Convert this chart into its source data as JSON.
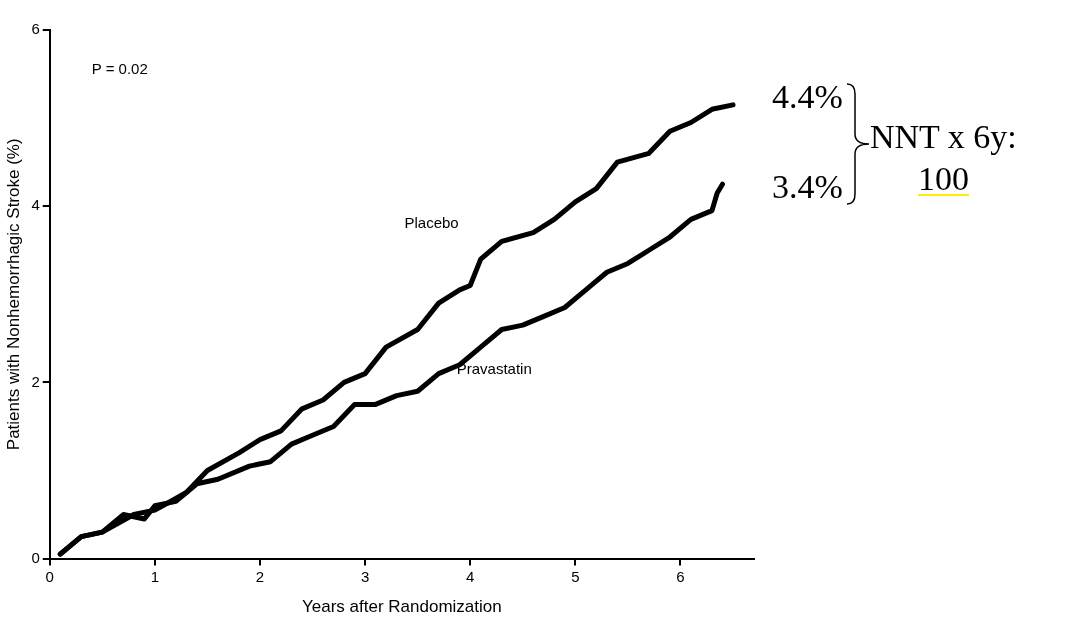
{
  "chart_data": {
    "type": "line",
    "xlabel": "Years after Randomization",
    "ylabel": "Patients with Nonhemorrhagic Stroke (%)",
    "xlim": [
      0,
      6.7
    ],
    "xticks": [
      0,
      1,
      2,
      3,
      4,
      5,
      6
    ],
    "ylim": [
      0,
      6
    ],
    "yticks": [
      0,
      2,
      4,
      6
    ],
    "grid": false,
    "legend": false,
    "marker": "none",
    "line_style": "solid",
    "annotations": [
      "P = 0.02",
      "4.4%",
      "3.4%",
      "NNT x 6y:",
      "100"
    ],
    "series": [
      {
        "name": "Placebo",
        "color": "#000000",
        "x": [
          0.1,
          0.3,
          0.5,
          0.8,
          1,
          1.3,
          1.5,
          1.8,
          2,
          2.2,
          2.4,
          2.6,
          2.8,
          3,
          3.2,
          3.5,
          3.7,
          3.9,
          4.0,
          4.1,
          4.3,
          4.6,
          4.8,
          5,
          5.2,
          5.4,
          5.7,
          5.9,
          6.1,
          6.3,
          6.5
        ],
        "values": [
          0.05,
          0.25,
          0.3,
          0.5,
          0.55,
          0.75,
          1.0,
          1.2,
          1.35,
          1.45,
          1.7,
          1.8,
          2.0,
          2.1,
          2.4,
          2.6,
          2.9,
          3.05,
          3.1,
          3.4,
          3.6,
          3.7,
          3.85,
          4.05,
          4.2,
          4.5,
          4.6,
          4.85,
          4.95,
          5.1,
          5.15
        ]
      },
      {
        "name": "Pravastatin",
        "color": "#000000",
        "x": [
          0.1,
          0.3,
          0.5,
          0.7,
          0.9,
          1,
          1.2,
          1.4,
          1.6,
          1.9,
          2.1,
          2.3,
          2.5,
          2.7,
          2.9,
          3.1,
          3.3,
          3.5,
          3.7,
          3.9,
          4.1,
          4.3,
          4.5,
          4.7,
          4.9,
          5.1,
          5.3,
          5.5,
          5.7,
          5.9,
          6.1,
          6.3,
          6.35,
          6.4
        ],
        "values": [
          0.05,
          0.25,
          0.3,
          0.5,
          0.45,
          0.6,
          0.65,
          0.85,
          0.9,
          1.05,
          1.1,
          1.3,
          1.4,
          1.5,
          1.75,
          1.75,
          1.85,
          1.9,
          2.1,
          2.2,
          2.4,
          2.6,
          2.65,
          2.75,
          2.85,
          3.05,
          3.25,
          3.35,
          3.5,
          3.65,
          3.85,
          3.95,
          4.15,
          4.25
        ]
      }
    ]
  }
}
